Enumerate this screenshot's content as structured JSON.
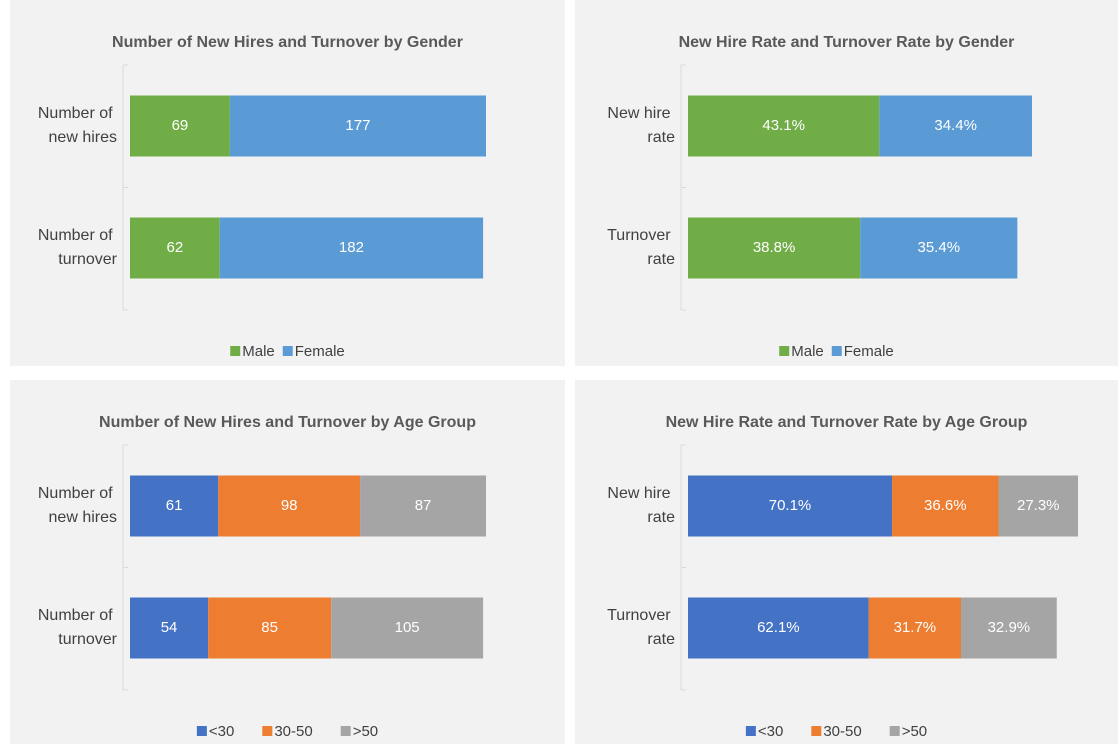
{
  "chart_data": [
    {
      "type": "stacked-bar-horizontal",
      "title": "Number of New Hires and Turnover by Gender",
      "categories": [
        "Number of new hires",
        "Number of turnover"
      ],
      "series": [
        {
          "name": "Male",
          "color": "#70ad47",
          "values": [
            69,
            62
          ]
        },
        {
          "name": "Female",
          "color": "#5b9bd5",
          "values": [
            177,
            182
          ]
        }
      ]
    },
    {
      "type": "stacked-bar-horizontal",
      "title": "New Hire Rate and Turnover Rate by Gender",
      "categories": [
        "New hire rate",
        "Turnover rate"
      ],
      "series": [
        {
          "name": "Male",
          "color": "#70ad47",
          "values": [
            43.1,
            38.8
          ],
          "value_labels": [
            "43.1%",
            "38.8%"
          ]
        },
        {
          "name": "Female",
          "color": "#5b9bd5",
          "values": [
            34.4,
            35.4
          ],
          "value_labels": [
            "34.4%",
            "35.4%"
          ]
        }
      ]
    },
    {
      "type": "stacked-bar-horizontal",
      "title": "Number of New Hires and Turnover by Age Group",
      "categories": [
        "Number of new hires",
        "Number of turnover"
      ],
      "series": [
        {
          "name": "<30",
          "color": "#4472c4",
          "values": [
            61,
            54
          ]
        },
        {
          "name": "30-50",
          "color": "#ed7d31",
          "values": [
            98,
            85
          ]
        },
        {
          "name": ">50",
          "color": "#a5a5a5",
          "values": [
            87,
            105
          ]
        }
      ]
    },
    {
      "type": "stacked-bar-horizontal",
      "title": "New Hire Rate and Turnover Rate by Age Group",
      "categories": [
        "New hire rate",
        "Turnover rate"
      ],
      "series": [
        {
          "name": "<30",
          "color": "#4472c4",
          "values": [
            70.1,
            62.1
          ],
          "value_labels": [
            "70.1%",
            "62.1%"
          ]
        },
        {
          "name": "30-50",
          "color": "#ed7d31",
          "values": [
            36.6,
            31.7
          ],
          "value_labels": [
            "36.6%",
            "31.7%"
          ]
        },
        {
          "name": ">50",
          "color": "#a5a5a5",
          "values": [
            27.3,
            32.9
          ],
          "value_labels": [
            "27.3%",
            "32.9%"
          ]
        }
      ]
    }
  ]
}
